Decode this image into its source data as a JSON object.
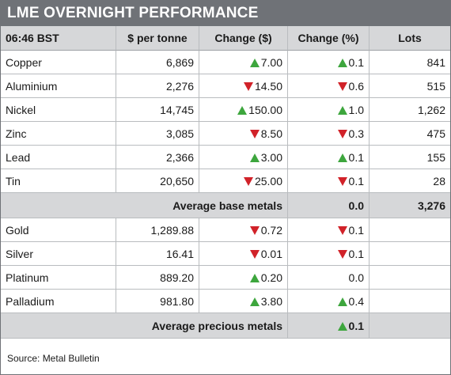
{
  "title": "LME OVERNIGHT PERFORMANCE",
  "headers": [
    "06:46 BST",
    "$ per tonne",
    "Change ($)",
    "Change (%)",
    "Lots"
  ],
  "base_metals": [
    {
      "name": "Copper",
      "price": "6,869",
      "change_usd": "7.00",
      "change_usd_dir": "up",
      "change_pct": "0.1",
      "change_pct_dir": "up",
      "lots": "841"
    },
    {
      "name": "Aluminium",
      "price": "2,276",
      "change_usd": "14.50",
      "change_usd_dir": "down",
      "change_pct": "0.6",
      "change_pct_dir": "down",
      "lots": "515"
    },
    {
      "name": "Nickel",
      "price": "14,745",
      "change_usd": "150.00",
      "change_usd_dir": "up",
      "change_pct": "1.0",
      "change_pct_dir": "up",
      "lots": "1,262"
    },
    {
      "name": "Zinc",
      "price": "3,085",
      "change_usd": "8.50",
      "change_usd_dir": "down",
      "change_pct": "0.3",
      "change_pct_dir": "down",
      "lots": "475"
    },
    {
      "name": "Lead",
      "price": "2,366",
      "change_usd": "3.00",
      "change_usd_dir": "up",
      "change_pct": "0.1",
      "change_pct_dir": "up",
      "lots": "155"
    },
    {
      "name": "Tin",
      "price": "20,650",
      "change_usd": "25.00",
      "change_usd_dir": "down",
      "change_pct": "0.1",
      "change_pct_dir": "down",
      "lots": "28"
    }
  ],
  "base_summary": {
    "label": "Average base metals",
    "change_pct": "0.0",
    "change_pct_dir": "none",
    "lots": "3,276"
  },
  "precious_metals": [
    {
      "name": "Gold",
      "price": "1,289.88",
      "change_usd": "0.72",
      "change_usd_dir": "down",
      "change_pct": "0.1",
      "change_pct_dir": "down",
      "lots": ""
    },
    {
      "name": "Silver",
      "price": "16.41",
      "change_usd": "0.01",
      "change_usd_dir": "down",
      "change_pct": "0.1",
      "change_pct_dir": "down",
      "lots": ""
    },
    {
      "name": "Platinum",
      "price": "889.20",
      "change_usd": "0.20",
      "change_usd_dir": "up",
      "change_pct": "0.0",
      "change_pct_dir": "none",
      "lots": ""
    },
    {
      "name": "Palladium",
      "price": "981.80",
      "change_usd": "3.80",
      "change_usd_dir": "up",
      "change_pct": "0.4",
      "change_pct_dir": "up",
      "lots": ""
    }
  ],
  "precious_summary": {
    "label": "Average precious metals",
    "change_pct": "0.1",
    "change_pct_dir": "up",
    "lots": ""
  },
  "source": "Source: Metal Bulletin",
  "colors": {
    "header_bar": "#6f7277",
    "row_header_bg": "#d6d7d9",
    "up_arrow": "#3da63d",
    "down_arrow": "#d12229"
  },
  "icons": {
    "up": "triangle-up-icon",
    "down": "triangle-down-icon"
  }
}
